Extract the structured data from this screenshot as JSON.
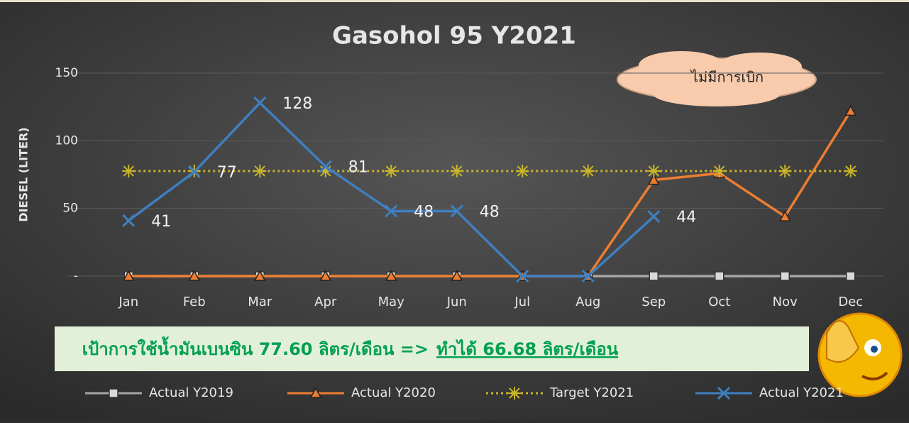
{
  "chart_data": {
    "type": "line",
    "title": "Gasohol 95 Y2021",
    "y_label": "DIESEL (LITER)",
    "categories": [
      "Jan",
      "Feb",
      "Mar",
      "Apr",
      "May",
      "Jun",
      "Jul",
      "Aug",
      "Sep",
      "Oct",
      "Nov",
      "Dec"
    ],
    "ylim": [
      0,
      150
    ],
    "yticks": [
      {
        "value": 0,
        "label": "-"
      },
      50,
      100,
      150
    ],
    "grid": true,
    "legend": "bottom",
    "series": [
      {
        "name": "Actual Y2019",
        "color": "#a6a6a6",
        "marker": "square",
        "values": [
          0,
          0,
          0,
          0,
          0,
          0,
          0,
          0,
          0,
          0,
          0,
          0
        ]
      },
      {
        "name": "Actual Y2020",
        "color": "#ed7d31",
        "marker": "triangle",
        "values": [
          0,
          0,
          0,
          0,
          0,
          0,
          0,
          0,
          71,
          76,
          44,
          122
        ]
      },
      {
        "name": "Target Y2021",
        "color": "#c9b52a",
        "marker": "asterisk",
        "dash": true,
        "values": [
          77.6,
          77.6,
          77.6,
          77.6,
          77.6,
          77.6,
          77.6,
          77.6,
          77.6,
          77.6,
          77.6,
          77.6
        ]
      },
      {
        "name": "Actual Y2021",
        "color": "#3f7fc0",
        "marker": "x",
        "values": [
          41,
          77,
          128,
          81,
          48,
          48,
          0,
          0,
          44,
          null,
          null,
          null
        ],
        "value_labels": [
          "41",
          "77",
          "128",
          "81",
          "48",
          "48",
          null,
          null,
          "44",
          null,
          null,
          null
        ]
      }
    ],
    "annotations": {
      "cloud": "ไม่มีการเบิก",
      "banner": "เป้าการใช้น้ำมันเบนซิน 77.60 ลิตร/เดือน =>",
      "banner_result": "ทำได้ 66.68 ลิตร/เดือน"
    }
  }
}
